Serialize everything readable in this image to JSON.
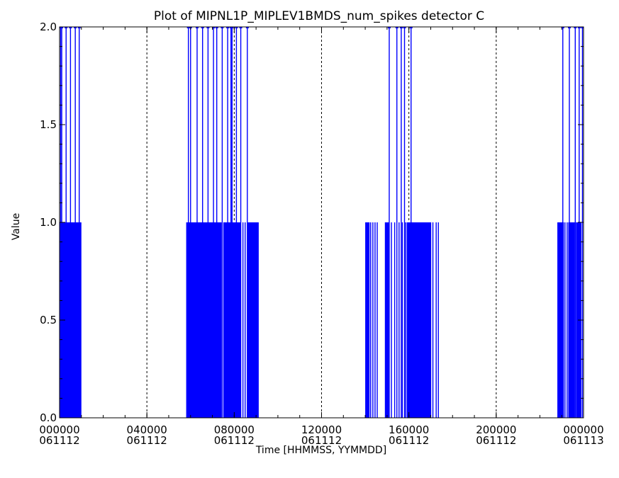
{
  "chart_data": {
    "type": "line",
    "title": "Plot of MIPNL1P_MIPLEV1BMDS_num_spikes detector C",
    "xlabel": "Time [HHMMSS, YYMMDD]",
    "ylabel": "Value",
    "xlim": [
      0,
      24
    ],
    "ylim": [
      0,
      2
    ],
    "x_unit": "hours",
    "yticks": [
      "0.0",
      "0.5",
      "1.0",
      "1.5",
      "2.0"
    ],
    "xticks": [
      {
        "x": 0,
        "time": "000000",
        "date": "061112"
      },
      {
        "x": 4,
        "time": "040000",
        "date": "061112"
      },
      {
        "x": 8,
        "time": "080000",
        "date": "061112"
      },
      {
        "x": 12,
        "time": "120000",
        "date": "061112"
      },
      {
        "x": 16,
        "time": "160000",
        "date": "061112"
      },
      {
        "x": 20,
        "time": "200000",
        "date": "061112"
      },
      {
        "x": 24,
        "time": "000000",
        "date": "061113"
      }
    ],
    "vgrid": [
      4,
      8,
      12,
      16,
      20
    ],
    "grid": "dotted-vertical",
    "series": [
      {
        "color": "#0000ff",
        "spikes": [
          {
            "x": 0.05,
            "v": 2
          },
          {
            "x": 0.1,
            "v": 2
          },
          {
            "x": 0.18,
            "v": 1
          },
          {
            "x": 0.25,
            "v": 1
          },
          {
            "x": 0.3,
            "v": 2
          },
          {
            "x": 0.35,
            "v": 1
          },
          {
            "x": 0.4,
            "v": 1
          },
          {
            "x": 0.45,
            "v": 1
          },
          {
            "x": 0.5,
            "v": 2
          },
          {
            "x": 0.55,
            "v": 1
          },
          {
            "x": 0.6,
            "v": 1
          },
          {
            "x": 0.65,
            "v": 1
          },
          {
            "x": 0.7,
            "v": 1
          },
          {
            "x": 0.72,
            "v": 2
          },
          {
            "x": 0.78,
            "v": 1
          },
          {
            "x": 0.82,
            "v": 1
          },
          {
            "x": 0.88,
            "v": 1
          },
          {
            "x": 0.9,
            "v": 2
          },
          {
            "x": 0.95,
            "v": 1
          },
          {
            "x": 5.85,
            "v": 1
          },
          {
            "x": 5.9,
            "v": 2
          },
          {
            "x": 6.0,
            "v": 2
          },
          {
            "x": 6.1,
            "v": 1
          },
          {
            "x": 6.2,
            "v": 1
          },
          {
            "x": 6.3,
            "v": 2
          },
          {
            "x": 6.4,
            "v": 1
          },
          {
            "x": 6.5,
            "v": 1
          },
          {
            "x": 6.55,
            "v": 2
          },
          {
            "x": 6.65,
            "v": 1
          },
          {
            "x": 6.75,
            "v": 1
          },
          {
            "x": 6.8,
            "v": 2
          },
          {
            "x": 6.9,
            "v": 1
          },
          {
            "x": 7.0,
            "v": 1
          },
          {
            "x": 7.05,
            "v": 2
          },
          {
            "x": 7.15,
            "v": 1
          },
          {
            "x": 7.2,
            "v": 2
          },
          {
            "x": 7.3,
            "v": 1
          },
          {
            "x": 7.4,
            "v": 1
          },
          {
            "x": 7.45,
            "v": 2
          },
          {
            "x": 7.55,
            "v": 1
          },
          {
            "x": 7.65,
            "v": 1
          },
          {
            "x": 7.7,
            "v": 2
          },
          {
            "x": 7.8,
            "v": 1
          },
          {
            "x": 7.85,
            "v": 2
          },
          {
            "x": 7.9,
            "v": 2
          },
          {
            "x": 7.95,
            "v": 1
          },
          {
            "x": 8.05,
            "v": 1
          },
          {
            "x": 8.1,
            "v": 2
          },
          {
            "x": 8.2,
            "v": 1
          },
          {
            "x": 8.3,
            "v": 2
          },
          {
            "x": 8.4,
            "v": 1
          },
          {
            "x": 8.5,
            "v": 1
          },
          {
            "x": 8.6,
            "v": 2
          },
          {
            "x": 8.7,
            "v": 1
          },
          {
            "x": 8.8,
            "v": 1
          },
          {
            "x": 8.9,
            "v": 1
          },
          {
            "x": 9.0,
            "v": 1
          },
          {
            "x": 9.1,
            "v": 1
          },
          {
            "x": 14.05,
            "v": 1
          },
          {
            "x": 14.15,
            "v": 1
          },
          {
            "x": 14.25,
            "v": 1
          },
          {
            "x": 14.35,
            "v": 1
          },
          {
            "x": 14.45,
            "v": 1
          },
          {
            "x": 14.55,
            "v": 1
          },
          {
            "x": 15.0,
            "v": 1
          },
          {
            "x": 15.05,
            "v": 1
          },
          {
            "x": 15.1,
            "v": 2
          },
          {
            "x": 15.2,
            "v": 1
          },
          {
            "x": 15.35,
            "v": 1
          },
          {
            "x": 15.45,
            "v": 2
          },
          {
            "x": 15.55,
            "v": 1
          },
          {
            "x": 15.65,
            "v": 2
          },
          {
            "x": 15.7,
            "v": 1
          },
          {
            "x": 15.8,
            "v": 2
          },
          {
            "x": 15.85,
            "v": 1
          },
          {
            "x": 15.95,
            "v": 1
          },
          {
            "x": 16.05,
            "v": 1
          },
          {
            "x": 16.1,
            "v": 2
          },
          {
            "x": 16.2,
            "v": 1
          },
          {
            "x": 16.3,
            "v": 1
          },
          {
            "x": 16.4,
            "v": 1
          },
          {
            "x": 16.5,
            "v": 1
          },
          {
            "x": 16.6,
            "v": 1
          },
          {
            "x": 16.7,
            "v": 1
          },
          {
            "x": 16.8,
            "v": 1
          },
          {
            "x": 16.9,
            "v": 1
          },
          {
            "x": 17.0,
            "v": 1
          },
          {
            "x": 17.1,
            "v": 1
          },
          {
            "x": 17.25,
            "v": 1
          },
          {
            "x": 17.35,
            "v": 1
          },
          {
            "x": 22.85,
            "v": 1
          },
          {
            "x": 22.95,
            "v": 1
          },
          {
            "x": 23.05,
            "v": 2
          },
          {
            "x": 23.15,
            "v": 1
          },
          {
            "x": 23.25,
            "v": 1
          },
          {
            "x": 23.35,
            "v": 2
          },
          {
            "x": 23.45,
            "v": 1
          },
          {
            "x": 23.55,
            "v": 1
          },
          {
            "x": 23.62,
            "v": 2
          },
          {
            "x": 23.7,
            "v": 1
          },
          {
            "x": 23.8,
            "v": 2
          },
          {
            "x": 23.88,
            "v": 1
          },
          {
            "x": 23.95,
            "v": 2
          }
        ],
        "dense_blocks": [
          {
            "x0": 0.0,
            "x1": 1.0,
            "v": 1
          },
          {
            "x0": 5.8,
            "x1": 7.4,
            "v": 1
          },
          {
            "x0": 7.5,
            "x1": 8.3,
            "v": 1
          },
          {
            "x0": 8.6,
            "x1": 9.1,
            "v": 1
          },
          {
            "x0": 14.0,
            "x1": 14.2,
            "v": 1
          },
          {
            "x0": 14.9,
            "x1": 15.1,
            "v": 1
          },
          {
            "x0": 15.9,
            "x1": 17.0,
            "v": 1
          },
          {
            "x0": 22.8,
            "x1": 23.1,
            "v": 1
          },
          {
            "x0": 23.3,
            "x1": 23.6,
            "v": 1
          },
          {
            "x0": 23.65,
            "x1": 23.9,
            "v": 1
          }
        ]
      }
    ]
  }
}
